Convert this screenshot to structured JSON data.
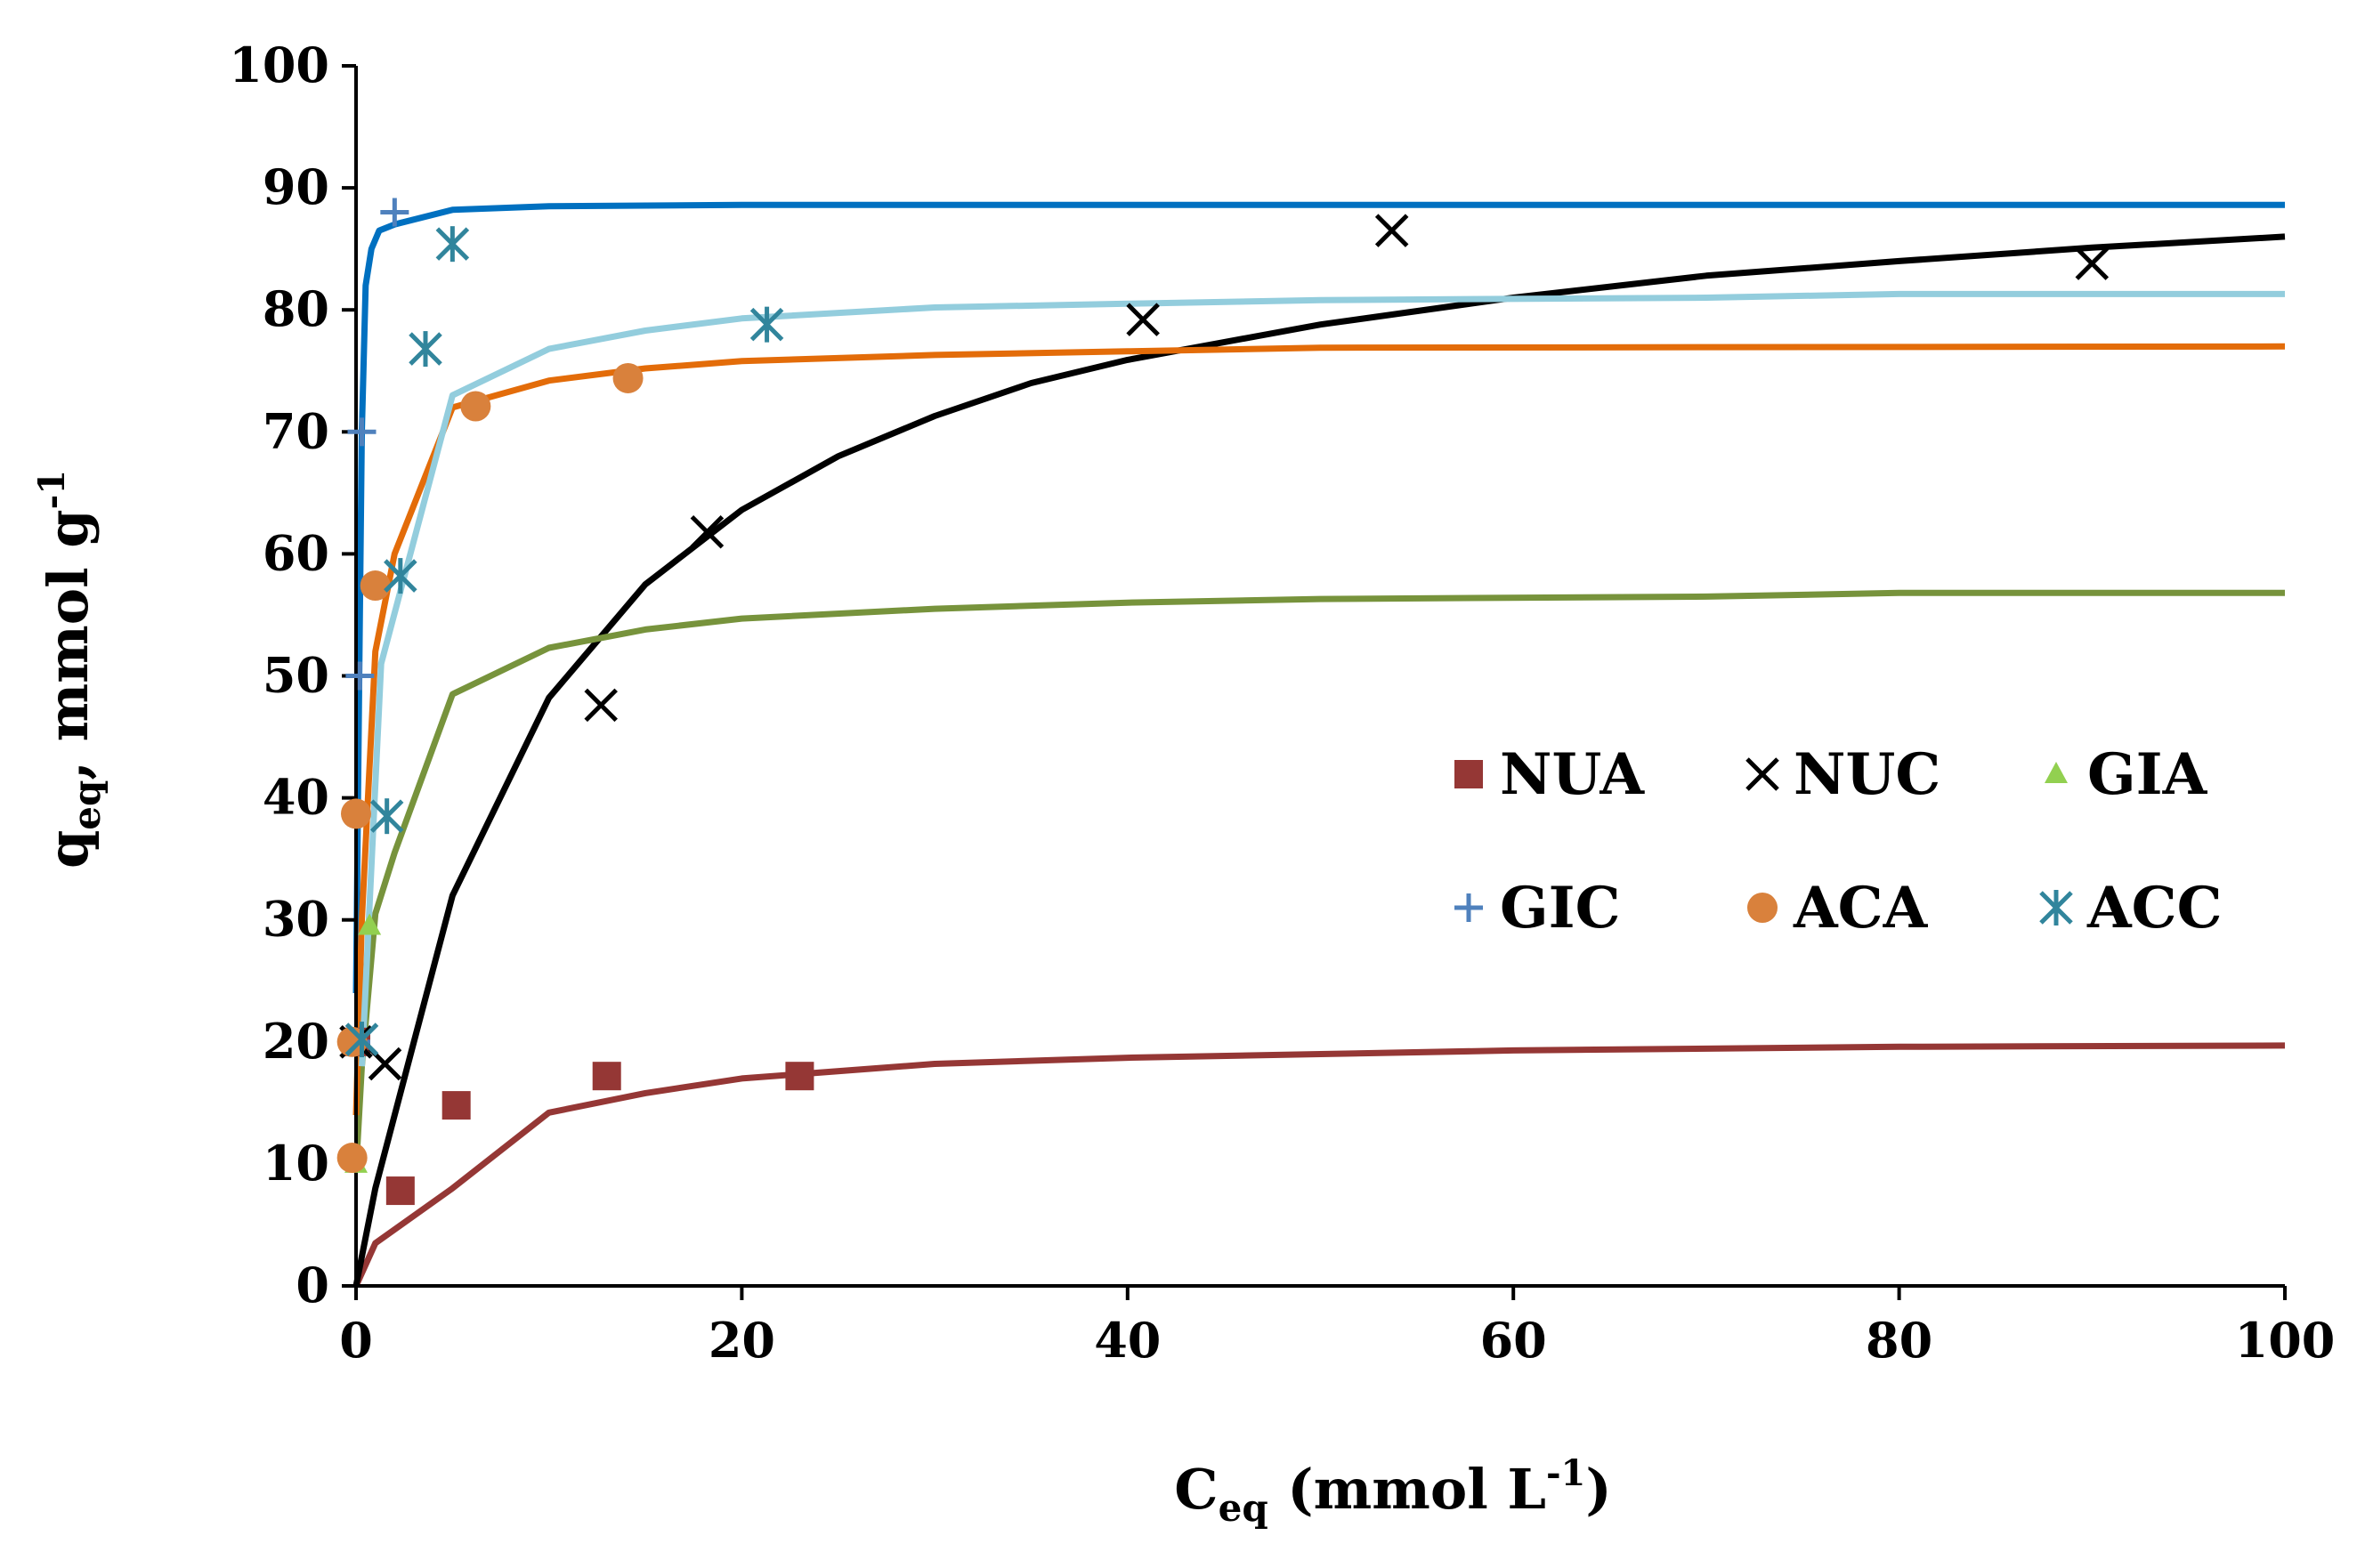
{
  "chart_data": {
    "type": "scatter",
    "title": "",
    "xlabel": {
      "main": "C",
      "sub": "eq",
      "rest": " (mmol L",
      "sup": "-1",
      "end": ")"
    },
    "ylabel": {
      "main": "q",
      "sub": "eq",
      "rest": ", mmol g",
      "sup": "-1"
    },
    "xlim": [
      0,
      100
    ],
    "ylim": [
      0,
      100
    ],
    "xticks": [
      "0",
      "20",
      "40",
      "60",
      "80",
      "100"
    ],
    "yticks": [
      "0",
      "10",
      "20",
      "30",
      "40",
      "50",
      "60",
      "70",
      "80",
      "90",
      "100"
    ],
    "grid": false,
    "legend_position": "right-middle",
    "series": [
      {
        "name": "NUA",
        "marker": "square",
        "color": "#953735",
        "points": [
          [
            0,
            20
          ],
          [
            2.3,
            7.8
          ],
          [
            5.2,
            14.8
          ],
          [
            13,
            17.2
          ],
          [
            23,
            17.2
          ]
        ],
        "fit": [
          [
            0,
            0
          ],
          [
            1,
            3.5
          ],
          [
            5,
            8
          ],
          [
            10,
            14.2
          ],
          [
            15,
            15.8
          ],
          [
            20,
            17
          ],
          [
            30,
            18.2
          ],
          [
            40,
            18.7
          ],
          [
            50,
            19
          ],
          [
            60,
            19.3
          ],
          [
            80,
            19.6
          ],
          [
            100,
            19.7
          ]
        ]
      },
      {
        "name": "NUC",
        "marker": "x",
        "color": "#000000",
        "points": [
          [
            0,
            20
          ],
          [
            1.5,
            18.2
          ],
          [
            12.7,
            47.6
          ],
          [
            18.2,
            61.8
          ],
          [
            40.8,
            79.2
          ],
          [
            53.7,
            86.5
          ],
          [
            90,
            83.8
          ]
        ],
        "fit": [
          [
            0,
            0
          ],
          [
            1,
            8
          ],
          [
            3,
            20
          ],
          [
            5,
            32
          ],
          [
            10,
            48.2
          ],
          [
            15,
            57.5
          ],
          [
            20,
            63.6
          ],
          [
            25,
            68
          ],
          [
            30,
            71.3
          ],
          [
            35,
            74
          ],
          [
            40,
            75.9
          ],
          [
            50,
            78.8
          ],
          [
            60,
            81
          ],
          [
            70,
            82.8
          ],
          [
            80,
            84
          ],
          [
            90,
            85.1
          ],
          [
            100,
            86
          ]
        ]
      },
      {
        "name": "GIA",
        "marker": "triangle",
        "color": "#92d050",
        "points": [
          [
            0,
            10
          ],
          [
            0.7,
            29.5
          ]
        ],
        "fit": [
          [
            0,
            9.5
          ],
          [
            0.3,
            18
          ],
          [
            1,
            30.5
          ],
          [
            2,
            35.5
          ],
          [
            5,
            48.5
          ],
          [
            10,
            52.3
          ],
          [
            15,
            53.8
          ],
          [
            20,
            54.7
          ],
          [
            30,
            55.5
          ],
          [
            40,
            56
          ],
          [
            50,
            56.3
          ],
          [
            70,
            56.5
          ],
          [
            80,
            56.8
          ],
          [
            100,
            56.8
          ]
        ]
      },
      {
        "name": "GIC",
        "marker": "plus",
        "color": "#4f81bd",
        "points": [
          [
            0,
            20
          ],
          [
            0.2,
            50
          ],
          [
            0.3,
            70
          ],
          [
            2,
            88
          ]
        ],
        "fit": [
          [
            0,
            24
          ],
          [
            0.1,
            40
          ],
          [
            0.2,
            55
          ],
          [
            0.3,
            70
          ],
          [
            0.5,
            82
          ],
          [
            0.8,
            85
          ],
          [
            1.2,
            86.5
          ],
          [
            2,
            87
          ],
          [
            5,
            88.2
          ],
          [
            10,
            88.5
          ],
          [
            20,
            88.6
          ],
          [
            100,
            88.6
          ]
        ]
      },
      {
        "name": "ACA",
        "marker": "circle",
        "color": "#d9813c",
        "points": [
          [
            -0.2,
            10.5
          ],
          [
            -0.2,
            20
          ],
          [
            0,
            38.7
          ],
          [
            1,
            57.4
          ],
          [
            6.2,
            72.1
          ],
          [
            14.1,
            74.4
          ]
        ],
        "fit": [
          [
            0,
            14
          ],
          [
            0.3,
            30
          ],
          [
            1,
            52
          ],
          [
            2,
            60
          ],
          [
            5,
            72
          ],
          [
            10,
            74.2
          ],
          [
            15,
            75.2
          ],
          [
            20,
            75.8
          ],
          [
            30,
            76.3
          ],
          [
            40,
            76.6
          ],
          [
            50,
            76.9
          ],
          [
            100,
            77
          ]
        ]
      },
      {
        "name": "ACC",
        "marker": "star",
        "color": "#31859c",
        "points": [
          [
            0.3,
            20.2
          ],
          [
            1.6,
            38.5
          ],
          [
            2.3,
            58.2
          ],
          [
            3.6,
            76.8
          ],
          [
            5,
            85.4
          ],
          [
            21.3,
            78.8
          ]
        ],
        "fit": [
          [
            0.3,
            18
          ],
          [
            1.3,
            51
          ],
          [
            5,
            73
          ],
          [
            10,
            76.8
          ],
          [
            15,
            78.3
          ],
          [
            20,
            79.3
          ],
          [
            30,
            80.2
          ],
          [
            40,
            80.5
          ],
          [
            50,
            80.8
          ],
          [
            70,
            81
          ],
          [
            80,
            81.3
          ],
          [
            100,
            81.3
          ]
        ],
        "fit_color": "#93cddd"
      }
    ]
  }
}
